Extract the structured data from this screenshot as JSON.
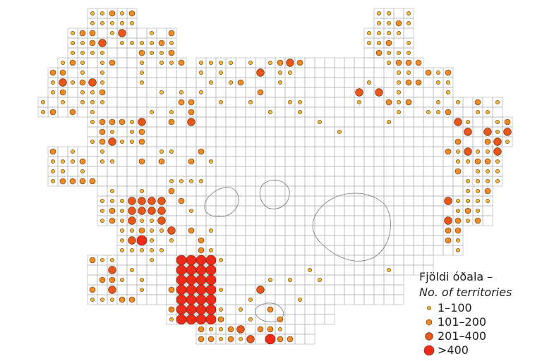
{
  "legend": {
    "title": "Fjöldi óðala –",
    "subtitle": "No. of territories",
    "classes": [
      "1–100",
      "101–200",
      "201–400",
      ">400"
    ]
  }
}
